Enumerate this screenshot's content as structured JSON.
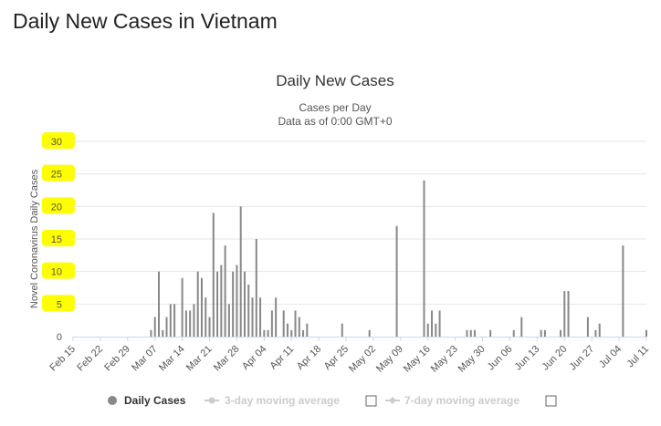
{
  "page": {
    "heading": "Daily New Cases in Vietnam"
  },
  "chart_data": {
    "type": "bar",
    "title": "Daily New Cases",
    "subtitle_lines": [
      "Cases per Day",
      "Data as of 0:00 GMT+0"
    ],
    "ylabel": "Novel Coronavirus Daily Cases",
    "xlabel": "",
    "ylim": [
      0,
      30
    ],
    "yticks": [
      0,
      5,
      10,
      15,
      20,
      25,
      30
    ],
    "xlim": [
      "2020-02-15",
      "2020-07-11"
    ],
    "xtick_dates": [
      "2020-02-15",
      "2020-02-22",
      "2020-02-29",
      "2020-03-07",
      "2020-03-14",
      "2020-03-21",
      "2020-03-28",
      "2020-04-04",
      "2020-04-11",
      "2020-04-18",
      "2020-04-25",
      "2020-05-02",
      "2020-05-09",
      "2020-05-16",
      "2020-05-23",
      "2020-05-30",
      "2020-06-06",
      "2020-06-13",
      "2020-06-20",
      "2020-06-27",
      "2020-07-04",
      "2020-07-11"
    ],
    "xtick_labels": [
      "Feb 15",
      "Feb 22",
      "Feb 29",
      "Mar 07",
      "Mar 14",
      "Mar 21",
      "Mar 28",
      "Apr 04",
      "Apr 11",
      "Apr 18",
      "Apr 25",
      "May 02",
      "May 09",
      "May 16",
      "May 23",
      "May 30",
      "Jun 06",
      "Jun 13",
      "Jun 20",
      "Jun 27",
      "Jul 04",
      "Jul 11"
    ],
    "grid": true,
    "legend_position": "bottom",
    "colors": {
      "bar": "#888888",
      "grid": "#e6e6e6",
      "highlight": "#ffff00",
      "legend_inactive": "#cccccc"
    },
    "series": [
      {
        "name": "Daily Cases",
        "points": [
          [
            "2020-03-06",
            1
          ],
          [
            "2020-03-07",
            3
          ],
          [
            "2020-03-08",
            10
          ],
          [
            "2020-03-09",
            1
          ],
          [
            "2020-03-10",
            3
          ],
          [
            "2020-03-11",
            5
          ],
          [
            "2020-03-12",
            5
          ],
          [
            "2020-03-14",
            9
          ],
          [
            "2020-03-15",
            4
          ],
          [
            "2020-03-16",
            4
          ],
          [
            "2020-03-17",
            5
          ],
          [
            "2020-03-18",
            10
          ],
          [
            "2020-03-19",
            9
          ],
          [
            "2020-03-20",
            6
          ],
          [
            "2020-03-21",
            3
          ],
          [
            "2020-03-22",
            19
          ],
          [
            "2020-03-23",
            10
          ],
          [
            "2020-03-24",
            11
          ],
          [
            "2020-03-25",
            14
          ],
          [
            "2020-03-26",
            5
          ],
          [
            "2020-03-27",
            10
          ],
          [
            "2020-03-28",
            11
          ],
          [
            "2020-03-29",
            20
          ],
          [
            "2020-03-30",
            10
          ],
          [
            "2020-03-31",
            8
          ],
          [
            "2020-04-01",
            6
          ],
          [
            "2020-04-02",
            15
          ],
          [
            "2020-04-03",
            6
          ],
          [
            "2020-04-04",
            1
          ],
          [
            "2020-04-05",
            1
          ],
          [
            "2020-04-06",
            4
          ],
          [
            "2020-04-07",
            6
          ],
          [
            "2020-04-09",
            4
          ],
          [
            "2020-04-10",
            2
          ],
          [
            "2020-04-11",
            1
          ],
          [
            "2020-04-12",
            4
          ],
          [
            "2020-04-13",
            3
          ],
          [
            "2020-04-14",
            1
          ],
          [
            "2020-04-15",
            2
          ],
          [
            "2020-04-24",
            2
          ],
          [
            "2020-05-01",
            1
          ],
          [
            "2020-05-08",
            17
          ],
          [
            "2020-05-15",
            24
          ],
          [
            "2020-05-16",
            2
          ],
          [
            "2020-05-17",
            4
          ],
          [
            "2020-05-18",
            2
          ],
          [
            "2020-05-19",
            4
          ],
          [
            "2020-05-26",
            1
          ],
          [
            "2020-05-27",
            1
          ],
          [
            "2020-05-28",
            1
          ],
          [
            "2020-06-01",
            1
          ],
          [
            "2020-06-07",
            1
          ],
          [
            "2020-06-09",
            3
          ],
          [
            "2020-06-14",
            1
          ],
          [
            "2020-06-15",
            1
          ],
          [
            "2020-06-19",
            1
          ],
          [
            "2020-06-20",
            7
          ],
          [
            "2020-06-21",
            7
          ],
          [
            "2020-06-26",
            3
          ],
          [
            "2020-06-28",
            1
          ],
          [
            "2020-06-29",
            2
          ],
          [
            "2020-07-05",
            14
          ],
          [
            "2020-07-11",
            1
          ]
        ]
      }
    ],
    "legend": [
      {
        "label": "Daily Cases",
        "active": true
      },
      {
        "label": "3-day moving average",
        "active": false
      },
      {
        "label": "7-day moving average",
        "active": false
      }
    ]
  }
}
